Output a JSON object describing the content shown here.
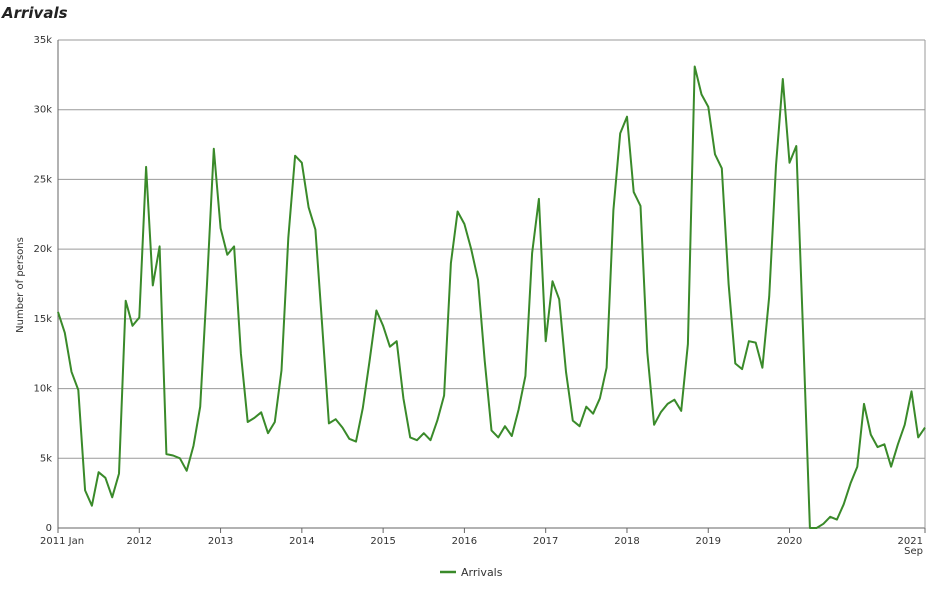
{
  "chart_data": {
    "type": "line",
    "title": "Arrivals",
    "ylabel": "Number of persons",
    "ylim": [
      0,
      35000
    ],
    "y_ticks": [
      {
        "value": 0,
        "label": "0"
      },
      {
        "value": 5000,
        "label": "5k"
      },
      {
        "value": 10000,
        "label": "10k"
      },
      {
        "value": 15000,
        "label": "15k"
      },
      {
        "value": 20000,
        "label": "20k"
      },
      {
        "value": 25000,
        "label": "25k"
      },
      {
        "value": 30000,
        "label": "30k"
      },
      {
        "value": 35000,
        "label": "35k"
      }
    ],
    "x_ticks": [
      {
        "date": "2011-01",
        "label": "2011 Jan"
      },
      {
        "date": "2012-01",
        "label": "2012"
      },
      {
        "date": "2013-01",
        "label": "2013"
      },
      {
        "date": "2014-01",
        "label": "2014"
      },
      {
        "date": "2015-01",
        "label": "2015"
      },
      {
        "date": "2016-01",
        "label": "2016"
      },
      {
        "date": "2017-01",
        "label": "2017"
      },
      {
        "date": "2018-01",
        "label": "2018"
      },
      {
        "date": "2019-01",
        "label": "2019"
      },
      {
        "date": "2020-01",
        "label": "2020"
      },
      {
        "date": "2021-09",
        "label": "2021",
        "sublabel": "Sep"
      }
    ],
    "grid": true,
    "legend_position": "bottom-center",
    "series": [
      {
        "name": "Arrivals",
        "color": "#3a8a2a",
        "points": [
          {
            "x": "2011-01",
            "y": 15500
          },
          {
            "x": "2011-02",
            "y": 14000
          },
          {
            "x": "2011-03",
            "y": 11200
          },
          {
            "x": "2011-04",
            "y": 9900
          },
          {
            "x": "2011-05",
            "y": 2700
          },
          {
            "x": "2011-06",
            "y": 1600
          },
          {
            "x": "2011-07",
            "y": 4000
          },
          {
            "x": "2011-08",
            "y": 3600
          },
          {
            "x": "2011-09",
            "y": 2200
          },
          {
            "x": "2011-10",
            "y": 3900
          },
          {
            "x": "2011-11",
            "y": 16300
          },
          {
            "x": "2011-12",
            "y": 14500
          },
          {
            "x": "2012-01",
            "y": 15100
          },
          {
            "x": "2012-02",
            "y": 25900
          },
          {
            "x": "2012-03",
            "y": 17400
          },
          {
            "x": "2012-04",
            "y": 20200
          },
          {
            "x": "2012-05",
            "y": 5300
          },
          {
            "x": "2012-06",
            "y": 5200
          },
          {
            "x": "2012-07",
            "y": 5000
          },
          {
            "x": "2012-08",
            "y": 4100
          },
          {
            "x": "2012-09",
            "y": 5900
          },
          {
            "x": "2012-10",
            "y": 8700
          },
          {
            "x": "2012-11",
            "y": 17500
          },
          {
            "x": "2012-12",
            "y": 27200
          },
          {
            "x": "2013-01",
            "y": 21500
          },
          {
            "x": "2013-02",
            "y": 19600
          },
          {
            "x": "2013-03",
            "y": 20200
          },
          {
            "x": "2013-04",
            "y": 12500
          },
          {
            "x": "2013-05",
            "y": 7600
          },
          {
            "x": "2013-06",
            "y": 7900
          },
          {
            "x": "2013-07",
            "y": 8300
          },
          {
            "x": "2013-08",
            "y": 6800
          },
          {
            "x": "2013-09",
            "y": 7600
          },
          {
            "x": "2013-10",
            "y": 11300
          },
          {
            "x": "2013-11",
            "y": 20800
          },
          {
            "x": "2013-12",
            "y": 26700
          },
          {
            "x": "2014-01",
            "y": 26200
          },
          {
            "x": "2014-02",
            "y": 23000
          },
          {
            "x": "2014-03",
            "y": 21400
          },
          {
            "x": "2014-04",
            "y": 14500
          },
          {
            "x": "2014-05",
            "y": 7500
          },
          {
            "x": "2014-06",
            "y": 7800
          },
          {
            "x": "2014-07",
            "y": 7200
          },
          {
            "x": "2014-08",
            "y": 6400
          },
          {
            "x": "2014-09",
            "y": 6200
          },
          {
            "x": "2014-10",
            "y": 8600
          },
          {
            "x": "2014-11",
            "y": 12000
          },
          {
            "x": "2014-12",
            "y": 15600
          },
          {
            "x": "2015-01",
            "y": 14500
          },
          {
            "x": "2015-02",
            "y": 13000
          },
          {
            "x": "2015-03",
            "y": 13400
          },
          {
            "x": "2015-04",
            "y": 9300
          },
          {
            "x": "2015-05",
            "y": 6500
          },
          {
            "x": "2015-06",
            "y": 6300
          },
          {
            "x": "2015-07",
            "y": 6800
          },
          {
            "x": "2015-08",
            "y": 6300
          },
          {
            "x": "2015-09",
            "y": 7700
          },
          {
            "x": "2015-10",
            "y": 9500
          },
          {
            "x": "2015-11",
            "y": 19000
          },
          {
            "x": "2015-12",
            "y": 22700
          },
          {
            "x": "2016-01",
            "y": 21800
          },
          {
            "x": "2016-02",
            "y": 20000
          },
          {
            "x": "2016-03",
            "y": 17800
          },
          {
            "x": "2016-04",
            "y": 12000
          },
          {
            "x": "2016-05",
            "y": 7000
          },
          {
            "x": "2016-06",
            "y": 6500
          },
          {
            "x": "2016-07",
            "y": 7300
          },
          {
            "x": "2016-08",
            "y": 6600
          },
          {
            "x": "2016-09",
            "y": 8500
          },
          {
            "x": "2016-10",
            "y": 10900
          },
          {
            "x": "2016-11",
            "y": 19700
          },
          {
            "x": "2016-12",
            "y": 23600
          },
          {
            "x": "2017-01",
            "y": 13400
          },
          {
            "x": "2017-02",
            "y": 17700
          },
          {
            "x": "2017-03",
            "y": 16400
          },
          {
            "x": "2017-04",
            "y": 11200
          },
          {
            "x": "2017-05",
            "y": 7700
          },
          {
            "x": "2017-06",
            "y": 7300
          },
          {
            "x": "2017-07",
            "y": 8700
          },
          {
            "x": "2017-08",
            "y": 8200
          },
          {
            "x": "2017-09",
            "y": 9300
          },
          {
            "x": "2017-10",
            "y": 11500
          },
          {
            "x": "2017-11",
            "y": 22800
          },
          {
            "x": "2017-12",
            "y": 28300
          },
          {
            "x": "2018-01",
            "y": 29500
          },
          {
            "x": "2018-02",
            "y": 24100
          },
          {
            "x": "2018-03",
            "y": 23100
          },
          {
            "x": "2018-04",
            "y": 12600
          },
          {
            "x": "2018-05",
            "y": 7400
          },
          {
            "x": "2018-06",
            "y": 8300
          },
          {
            "x": "2018-07",
            "y": 8900
          },
          {
            "x": "2018-08",
            "y": 9200
          },
          {
            "x": "2018-09",
            "y": 8400
          },
          {
            "x": "2018-10",
            "y": 13200
          },
          {
            "x": "2018-11",
            "y": 33100
          },
          {
            "x": "2018-12",
            "y": 31100
          },
          {
            "x": "2019-01",
            "y": 30200
          },
          {
            "x": "2019-02",
            "y": 26800
          },
          {
            "x": "2019-03",
            "y": 25800
          },
          {
            "x": "2019-04",
            "y": 17500
          },
          {
            "x": "2019-05",
            "y": 11800
          },
          {
            "x": "2019-06",
            "y": 11400
          },
          {
            "x": "2019-07",
            "y": 13400
          },
          {
            "x": "2019-08",
            "y": 13300
          },
          {
            "x": "2019-09",
            "y": 11500
          },
          {
            "x": "2019-10",
            "y": 16600
          },
          {
            "x": "2019-11",
            "y": 26000
          },
          {
            "x": "2019-12",
            "y": 32200
          },
          {
            "x": "2020-01",
            "y": 26200
          },
          {
            "x": "2020-02",
            "y": 27400
          },
          {
            "x": "2020-03",
            "y": 14000
          },
          {
            "x": "2020-04",
            "y": 0
          },
          {
            "x": "2020-05",
            "y": 0
          },
          {
            "x": "2020-06",
            "y": 300
          },
          {
            "x": "2020-07",
            "y": 800
          },
          {
            "x": "2020-08",
            "y": 600
          },
          {
            "x": "2020-09",
            "y": 1700
          },
          {
            "x": "2020-10",
            "y": 3200
          },
          {
            "x": "2020-11",
            "y": 4400
          },
          {
            "x": "2020-12",
            "y": 8900
          },
          {
            "x": "2021-01",
            "y": 6700
          },
          {
            "x": "2021-02",
            "y": 5800
          },
          {
            "x": "2021-03",
            "y": 6000
          },
          {
            "x": "2021-04",
            "y": 4400
          },
          {
            "x": "2021-05",
            "y": 6000
          },
          {
            "x": "2021-06",
            "y": 7400
          },
          {
            "x": "2021-07",
            "y": 9800
          },
          {
            "x": "2021-08",
            "y": 6500
          },
          {
            "x": "2021-09",
            "y": 7200
          }
        ]
      }
    ]
  }
}
